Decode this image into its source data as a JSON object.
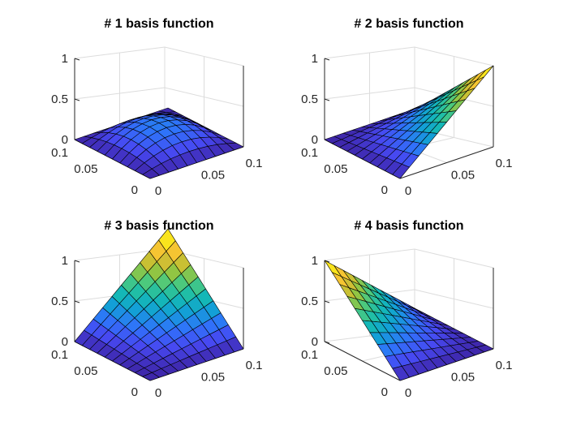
{
  "chart_data": [
    {
      "type": "surface",
      "title": "# 1 basis function",
      "function": "bubble",
      "zlim": [
        0,
        1
      ],
      "zticks": [
        "0",
        "0.5",
        "1"
      ],
      "y_ticks": [
        "0",
        "0.05",
        "0.1"
      ],
      "x_ticks": [
        "0",
        "0.05",
        "0.1"
      ],
      "x_range": [
        0,
        0.1
      ],
      "y_range": [
        0,
        0.1
      ],
      "peak_value": 0.5,
      "grid": true
    },
    {
      "type": "surface",
      "title": "# 2 basis function",
      "function": "x",
      "zlim": [
        0,
        1
      ],
      "zticks": [
        "0",
        "0.5",
        "1"
      ],
      "y_ticks": [
        "0",
        "0.05",
        "0.1"
      ],
      "x_ticks": [
        "0",
        "0.05",
        "0.1"
      ],
      "x_range": [
        0,
        0.1
      ],
      "y_range": [
        0,
        0.1
      ],
      "peak_value": 1,
      "grid": true
    },
    {
      "type": "surface",
      "title": "# 3 basis function",
      "function": "xy",
      "zlim": [
        0,
        1
      ],
      "zticks": [
        "0",
        "0.5",
        "1"
      ],
      "y_ticks": [
        "0",
        "0.05",
        "0.1"
      ],
      "x_ticks": [
        "0",
        "0.05",
        "0.1"
      ],
      "x_range": [
        0,
        0.1
      ],
      "y_range": [
        0,
        0.1
      ],
      "peak_value": 1,
      "grid": true
    },
    {
      "type": "surface",
      "title": "# 4 basis function",
      "function": "y",
      "zlim": [
        0,
        1
      ],
      "zticks": [
        "0",
        "0.5",
        "1"
      ],
      "y_ticks": [
        "0",
        "0.05",
        "0.1"
      ],
      "x_ticks": [
        "0",
        "0.05",
        "0.1"
      ],
      "x_range": [
        0,
        0.1
      ],
      "y_range": [
        0,
        0.1
      ],
      "peak_value": 1,
      "grid": true
    }
  ],
  "mesh_divisions": 10,
  "colormap": [
    "#3e26a8",
    "#4748f1",
    "#2f74fa",
    "#139fd7",
    "#14bbb1",
    "#4ec97c",
    "#a9c32f",
    "#f4bb39",
    "#f9e11f",
    "#f9fb0e"
  ]
}
